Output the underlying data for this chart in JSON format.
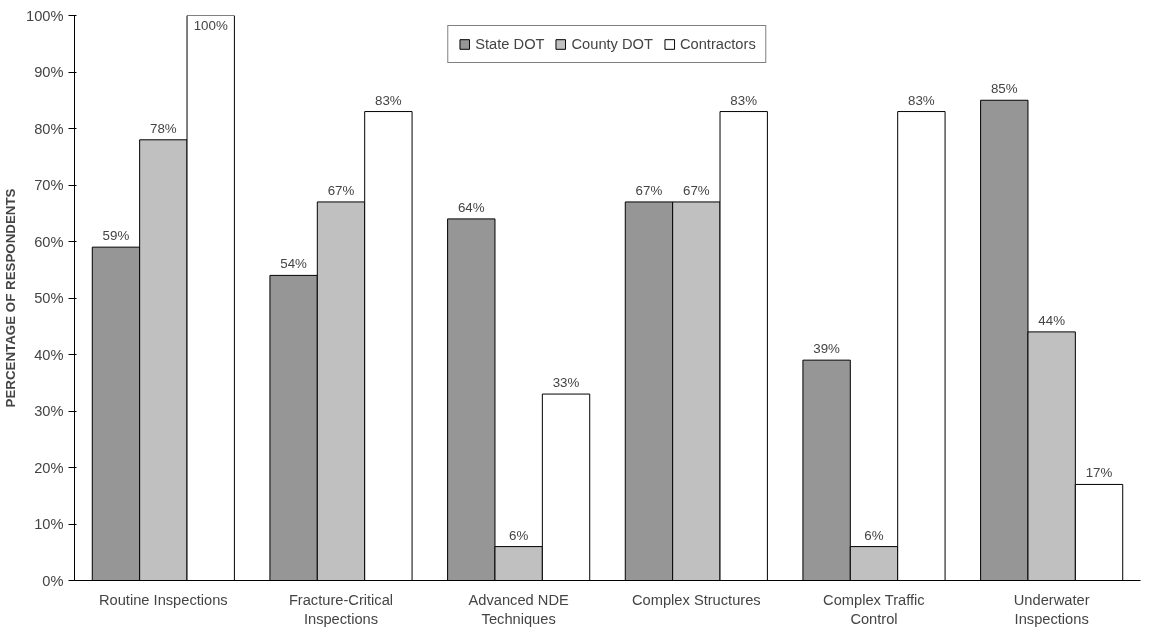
{
  "chart_data": {
    "type": "bar",
    "ylabel": "PERCENTAGE OF RESPONDENTS",
    "categories": [
      "Routine Inspections",
      "Fracture-Critical\nInspections",
      "Advanced NDE\nTechniques",
      "Complex Structures",
      "Complex Traffic\nControl",
      "Underwater\nInspections"
    ],
    "series": [
      {
        "name": "State DOT",
        "color": "#969696",
        "values": [
          59,
          54,
          64,
          67,
          39,
          85
        ],
        "value_labels": [
          "59%",
          "54%",
          "64%",
          "67%",
          "39%",
          "85%"
        ]
      },
      {
        "name": "County DOT",
        "color": "#c0c0c0",
        "values": [
          78,
          67,
          6,
          67,
          6,
          44
        ],
        "value_labels": [
          "78%",
          "67%",
          "6%",
          "67%",
          "6%",
          "44%"
        ]
      },
      {
        "name": "Contractors",
        "color": "#ffffff",
        "values": [
          100,
          83,
          33,
          83,
          83,
          17
        ],
        "value_labels": [
          "100%",
          "83%",
          "33%",
          "83%",
          "83%",
          "17%"
        ]
      }
    ],
    "ylim": [
      0,
      100
    ],
    "yticks": [
      {
        "value": 0,
        "label": "0%"
      },
      {
        "value": 10,
        "label": "10%"
      },
      {
        "value": 20,
        "label": "20%"
      },
      {
        "value": 30,
        "label": "30%"
      },
      {
        "value": 40,
        "label": "40%"
      },
      {
        "value": 50,
        "label": "50%"
      },
      {
        "value": 60,
        "label": "60%"
      },
      {
        "value": 70,
        "label": "70%"
      },
      {
        "value": 80,
        "label": "80%"
      },
      {
        "value": 90,
        "label": "90%"
      },
      {
        "value": 100,
        "label": "100%"
      }
    ],
    "grid": false,
    "legend": "top"
  }
}
